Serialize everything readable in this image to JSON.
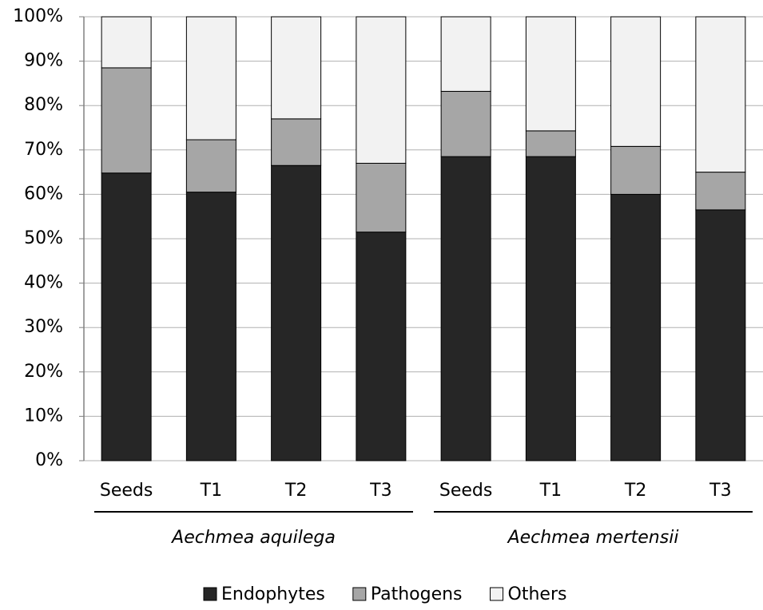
{
  "chart_data": {
    "type": "stacked-bar",
    "categories": [
      "Seeds",
      "T1",
      "T2",
      "T3",
      "Seeds",
      "T1",
      "T2",
      "T3"
    ],
    "groups": [
      "Aechmea aquilega",
      "Aechmea mertensii"
    ],
    "series": [
      {
        "name": "Endophytes",
        "color": "#262626",
        "values": [
          64.8,
          60.5,
          66.5,
          51.5,
          68.5,
          68.5,
          60,
          56.5
        ]
      },
      {
        "name": "Pathogens",
        "color": "#a6a6a6",
        "values": [
          23.7,
          11.8,
          10.5,
          15.5,
          14.7,
          5.8,
          10.8,
          8.5
        ]
      },
      {
        "name": "Others",
        "color": "#f2f2f2",
        "values": [
          11.5,
          27.7,
          23,
          33,
          16.8,
          25.7,
          29.2,
          35
        ]
      }
    ],
    "ylim": [
      0,
      100
    ],
    "yticks": [
      {
        "value": 0,
        "label": "0%"
      },
      {
        "value": 10,
        "label": "10%"
      },
      {
        "value": 20,
        "label": "20%"
      },
      {
        "value": 30,
        "label": "30%"
      },
      {
        "value": 40,
        "label": "40%"
      },
      {
        "value": 50,
        "label": "50%"
      },
      {
        "value": 60,
        "label": "60%"
      },
      {
        "value": 70,
        "label": "70%"
      },
      {
        "value": 80,
        "label": "80%"
      },
      {
        "value": 90,
        "label": "90%"
      },
      {
        "value": 100,
        "label": "100%"
      }
    ],
    "grid": true,
    "legend": "bottom"
  }
}
